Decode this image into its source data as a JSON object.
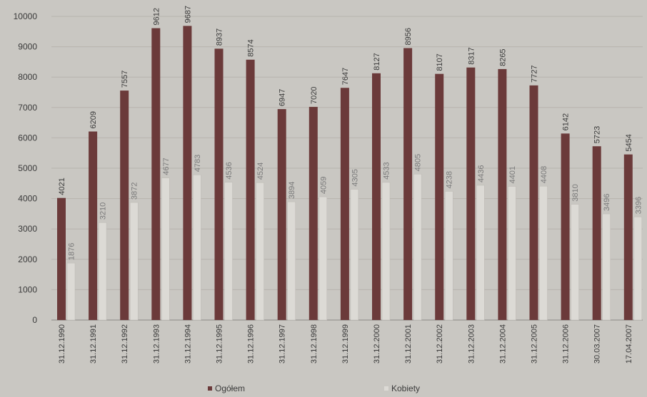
{
  "chart_data": {
    "type": "bar",
    "categories": [
      "31.12.1990",
      "31.12.1991",
      "31.12.1992",
      "31.12.1993",
      "31.12.1994",
      "31.12.1995",
      "31.12.1996",
      "31.12.1997",
      "31.12.1998",
      "31.12.1999",
      "31.12.2000",
      "31.12.2001",
      "31.12.2002",
      "31.12.2003",
      "31.12.2004",
      "31.12.2005",
      "31.12.2006",
      "30.03.2007",
      "17.04.2007"
    ],
    "series": [
      {
        "name": "Ogółem",
        "values": [
          4021,
          6209,
          7557,
          9612,
          9687,
          8937,
          8574,
          6947,
          7020,
          7647,
          8127,
          8956,
          8107,
          8317,
          8265,
          7727,
          6142,
          5723,
          5454
        ]
      },
      {
        "name": "Kobiety",
        "values": [
          1876,
          3210,
          3872,
          4677,
          4783,
          4536,
          4524,
          3894,
          4059,
          4305,
          4533,
          4805,
          4238,
          4436,
          4401,
          4408,
          3810,
          3496,
          3396
        ]
      }
    ],
    "ylim": [
      0,
      10000
    ],
    "yticks": [
      0,
      1000,
      2000,
      3000,
      4000,
      5000,
      6000,
      7000,
      8000,
      9000,
      10000
    ],
    "grid": true,
    "legend": "bottom",
    "colors": {
      "primary": "#6b3a3a",
      "secondary": "#dcdad5",
      "background": "#c9c7c2",
      "grid": "#b7b4ae",
      "text": "#3a3a3a"
    }
  }
}
